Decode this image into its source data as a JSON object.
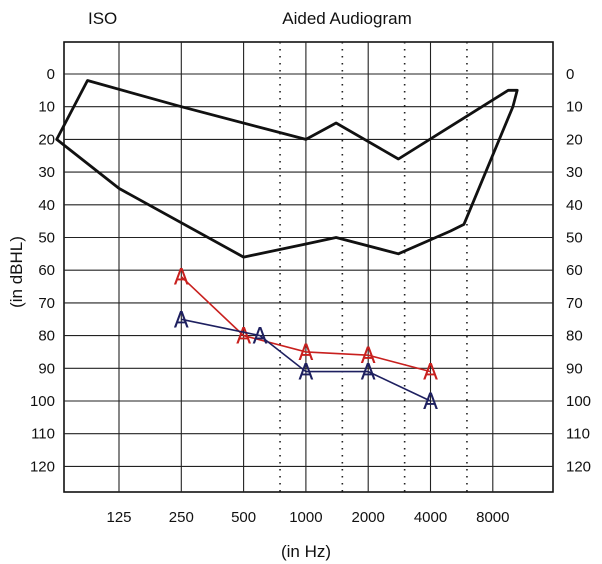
{
  "chart_data": {
    "type": "line",
    "title": "Aided Audiogram",
    "corner_label": "ISO",
    "xlabel": "(in Hz)",
    "ylabel": "(in dBHL)",
    "x_ticks": [
      "125",
      "250",
      "500",
      "1000",
      "2000",
      "4000",
      "8000"
    ],
    "y_ticks": [
      0,
      10,
      20,
      30,
      40,
      50,
      60,
      70,
      80,
      90,
      100,
      110,
      120
    ],
    "ylim": [
      -5,
      130
    ],
    "y_inverted": true,
    "grid": true,
    "dotted_verticals_hz": [
      750,
      1500,
      3000,
      6000
    ],
    "speech_banana": {
      "outline": [
        {
          "x": 62.5,
          "y": 20
        },
        {
          "x": 88,
          "y": 2
        },
        {
          "x": 250,
          "y": 10
        },
        {
          "x": 1000,
          "y": 20
        },
        {
          "x": 1400,
          "y": 15
        },
        {
          "x": 2800,
          "y": 26
        },
        {
          "x": 9500,
          "y": 5
        },
        {
          "x": 10500,
          "y": 5
        },
        {
          "x": 10000,
          "y": 10
        },
        {
          "x": 5800,
          "y": 46
        },
        {
          "x": 5000,
          "y": 48
        },
        {
          "x": 2800,
          "y": 55
        },
        {
          "x": 1400,
          "y": 50
        },
        {
          "x": 1000,
          "y": 52
        },
        {
          "x": 500,
          "y": 56
        },
        {
          "x": 125,
          "y": 35
        },
        {
          "x": 62.5,
          "y": 20
        }
      ],
      "color": "#111111"
    },
    "series": [
      {
        "marker": "A",
        "color": "#c8201e",
        "points": [
          {
            "x": 250,
            "y": 62
          },
          {
            "x": 500,
            "y": 80
          },
          {
            "x": 1000,
            "y": 85
          },
          {
            "x": 2000,
            "y": 86
          },
          {
            "x": 4000,
            "y": 91
          }
        ]
      },
      {
        "marker": "A",
        "color": "#1e2060",
        "points": [
          {
            "x": 250,
            "y": 75
          },
          {
            "x": 600,
            "y": 80
          },
          {
            "x": 1000,
            "y": 91
          },
          {
            "x": 2000,
            "y": 91
          },
          {
            "x": 4000,
            "y": 100
          }
        ]
      }
    ]
  }
}
